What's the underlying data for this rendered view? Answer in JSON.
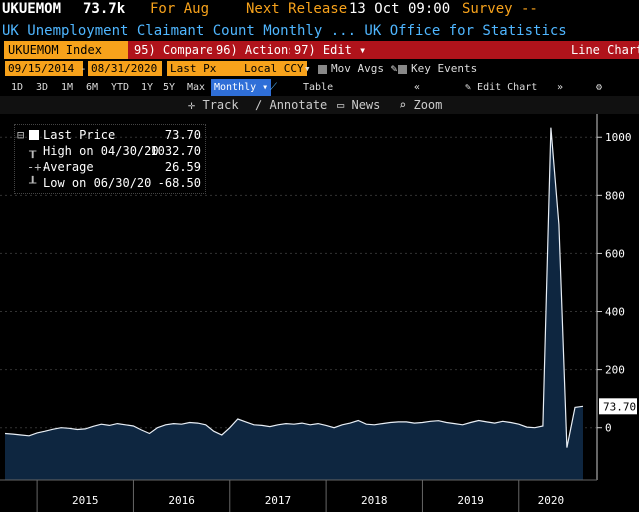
{
  "header": {
    "ticker": "UKUEMOM",
    "last_value": "73.7k",
    "for_label": "For Aug",
    "next_release_label": "Next Release",
    "next_release_date": "13 Oct 09:00",
    "survey_label": "Survey --"
  },
  "description": "UK Unemployment Claimant Count Monthly ... UK Office for Statistics",
  "toolbar": {
    "security": "UKUEMOM Index",
    "compare": "95) Compare",
    "compare_arrow": "▾",
    "actions": "96) Actions",
    "actions_arrow": "▾",
    "edit": "97) Edit",
    "edit_arrow": "▾",
    "chart_type": "Line Chart"
  },
  "params": {
    "start_date": "09/15/2014",
    "end_date": "08/31/2020",
    "field": "Last Px",
    "currency": "Local CCY",
    "mov_avgs": "Mov Avgs",
    "key_events": "Key Events"
  },
  "periods": [
    "1D",
    "3D",
    "1M",
    "6M",
    "YTD",
    "1Y",
    "5Y",
    "Max"
  ],
  "frequency": "Monthly",
  "table_label": "Table",
  "edit_chart_label": "Edit Chart",
  "tools": {
    "track": "Track",
    "annotate": "Annotate",
    "news": "News",
    "zoom": "Zoom"
  },
  "legend": {
    "last_price_label": "Last Price",
    "last_price_value": "73.70",
    "high_label": "High on 04/30/20",
    "high_value": "1032.70",
    "average_label": "Average",
    "average_value": "26.59",
    "low_label": "Low on 06/30/20",
    "low_value": "-68.50"
  },
  "colors": {
    "amber": "#f7a21b",
    "blue_text": "#4fb6ff",
    "red_bar": "#b0131b",
    "area_fill": "#0e2640",
    "line": "#e8eef5"
  },
  "chart_data": {
    "type": "area",
    "y_ticks": [
      0,
      200,
      400,
      600,
      800,
      1000
    ],
    "ylim": [
      -180,
      1080
    ],
    "year_labels": [
      "2015",
      "2016",
      "2017",
      "2018",
      "2019",
      "2020"
    ],
    "last_value_label": "73.70",
    "x_start": "2014-09",
    "x_end": "2020-08",
    "values": [
      -20,
      -22,
      -25,
      -28,
      -18,
      -12,
      -5,
      0,
      -2,
      -6,
      -4,
      5,
      12,
      8,
      14,
      10,
      6,
      -8,
      -20,
      0,
      10,
      14,
      12,
      18,
      16,
      10,
      -12,
      -25,
      0,
      30,
      20,
      10,
      8,
      4,
      10,
      14,
      12,
      16,
      10,
      14,
      8,
      0,
      10,
      16,
      25,
      12,
      10,
      14,
      18,
      20,
      20,
      16,
      18,
      22,
      24,
      18,
      14,
      10,
      18,
      25,
      20,
      16,
      22,
      18,
      12,
      2,
      0,
      6,
      1033,
      700,
      -68.5,
      70,
      73.7
    ]
  }
}
